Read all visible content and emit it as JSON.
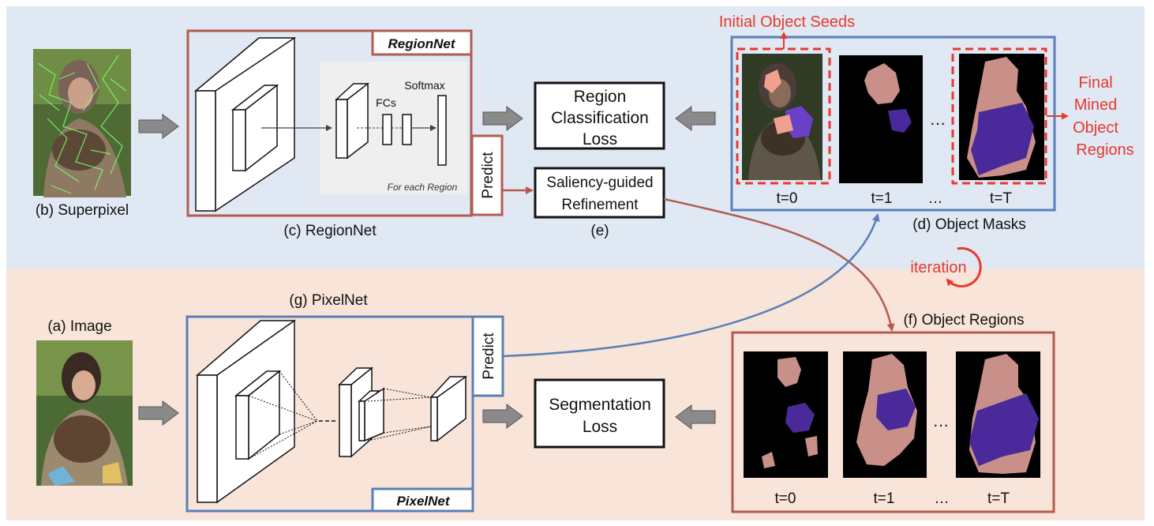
{
  "labels": {
    "superpixel": "(b) Superpixel",
    "image": "(a) Image",
    "regionnet_caption": "(c) RegionNet",
    "regionnet_tag": "RegionNet",
    "softmax": "Softmax",
    "fcs": "FCs",
    "for_each_region": "For each Region",
    "predict": "Predict",
    "region_loss_line1": "Region",
    "region_loss_line2": "Classification",
    "region_loss_line3": "Loss",
    "saliency_line1": "Saliency-guided",
    "saliency_line2": "Refinement",
    "e_caption": "(e)",
    "object_masks": "(d) Object Masks",
    "initial_seeds": "Initial Object Seeds",
    "final_line1": "Final",
    "final_line2": "Mined",
    "final_line3": "Object",
    "final_line4": "Regions",
    "iteration": "iteration",
    "pixelnet_caption": "(g) PixelNet",
    "pixelnet_tag": "PixelNet",
    "seg_loss_line1": "Segmentation",
    "seg_loss_line2": "Loss",
    "object_regions": "(f) Object Regions",
    "t0": "t=0",
    "t1": "t=1",
    "tT": "t=T",
    "dots": "…"
  },
  "colors": {
    "top_bg": "#dfe8f3",
    "bottom_bg": "#f8e4d8",
    "red_frame": "#b35b50",
    "blue_frame": "#5a7fb8",
    "accent_red": "#e8392c",
    "mask_pink": "#c89088",
    "mask_purple": "#4a2a9a"
  }
}
